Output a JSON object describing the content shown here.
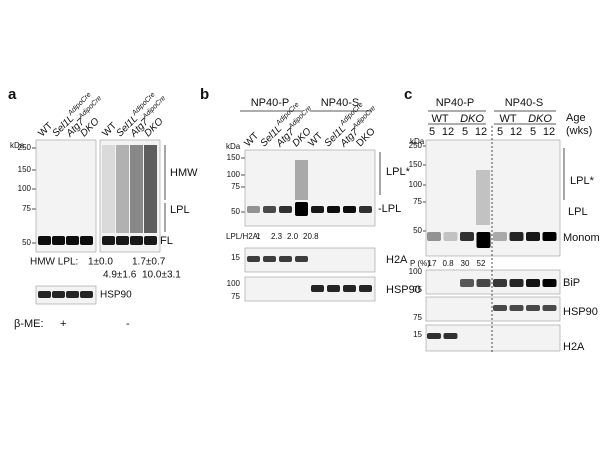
{
  "panels": {
    "a": {
      "label": "a",
      "kda": "kDa",
      "lanes_left": [
        {
          "name": "WT"
        },
        {
          "name": "Sel1L",
          "sup": "AdipoCre"
        },
        {
          "name": "Atg7",
          "sup": "AdipoCre"
        },
        {
          "name": "DKO"
        }
      ],
      "lanes_right": [
        {
          "name": "WT"
        },
        {
          "name": "Sel1L",
          "sup": "AdipoCre"
        },
        {
          "name": "Atg7",
          "sup": "AdipoCre"
        },
        {
          "name": "DKO"
        }
      ],
      "markers": [
        "250",
        "150",
        "100",
        "75",
        "50"
      ],
      "bands": [
        "HMW",
        "LPL",
        "FL"
      ],
      "quant_label": "HMW LPL:",
      "quant": [
        "1±0.0",
        "1.7±0.7",
        "4.9±1.6",
        "10.0±3.1"
      ],
      "loading": "HSP90",
      "bme_label": "β-ME:",
      "bme": [
        "+",
        "-"
      ]
    },
    "b": {
      "label": "b",
      "groups": [
        "NP40-P",
        "NP40-S"
      ],
      "kda": "kDa",
      "lanes": [
        {
          "name": "WT"
        },
        {
          "name": "Sel1L",
          "sup": "AdipoCre"
        },
        {
          "name": "Atg7",
          "sup": "AdipoCre"
        },
        {
          "name": "DKO"
        },
        {
          "name": "WT"
        },
        {
          "name": "Sel1L",
          "sup": "AdipoCre"
        },
        {
          "name": "Atg7",
          "sup": "AdipoCre"
        },
        {
          "name": "DKO"
        }
      ],
      "markers": [
        "150",
        "100",
        "75",
        "50"
      ],
      "bands": [
        "LPL*",
        "-LPL"
      ],
      "ratio_label": "LPL/H2A:",
      "ratios": [
        "1",
        "2.3",
        "2.0",
        "20.8"
      ],
      "h2a_marker": "15",
      "h2a": "H2A",
      "hsp90_markers": [
        "100",
        "75"
      ],
      "hsp90": "HSP90"
    },
    "c": {
      "label": "c",
      "groups": [
        "NP40-P",
        "NP40-S"
      ],
      "genotypes": [
        "WT",
        "DKO",
        "WT",
        "DKO"
      ],
      "ages": [
        "5",
        "12",
        "5",
        "12",
        "5",
        "12",
        "5",
        "12"
      ],
      "age_label": "Age",
      "age_unit": "(wks)",
      "kda": "kDa",
      "markers": [
        "250",
        "150",
        "100",
        "75",
        "50"
      ],
      "bands": [
        "LPL*",
        "LPL",
        "Monomer"
      ],
      "p_label": "P (%)",
      "p_values": [
        "17",
        "0.8",
        "30",
        "52"
      ],
      "bip_markers": [
        "100",
        "75"
      ],
      "bip": "BiP",
      "hsp90_marker": "75",
      "hsp90": "HSP90",
      "h2a_marker": "15",
      "h2a": "H2A"
    }
  }
}
